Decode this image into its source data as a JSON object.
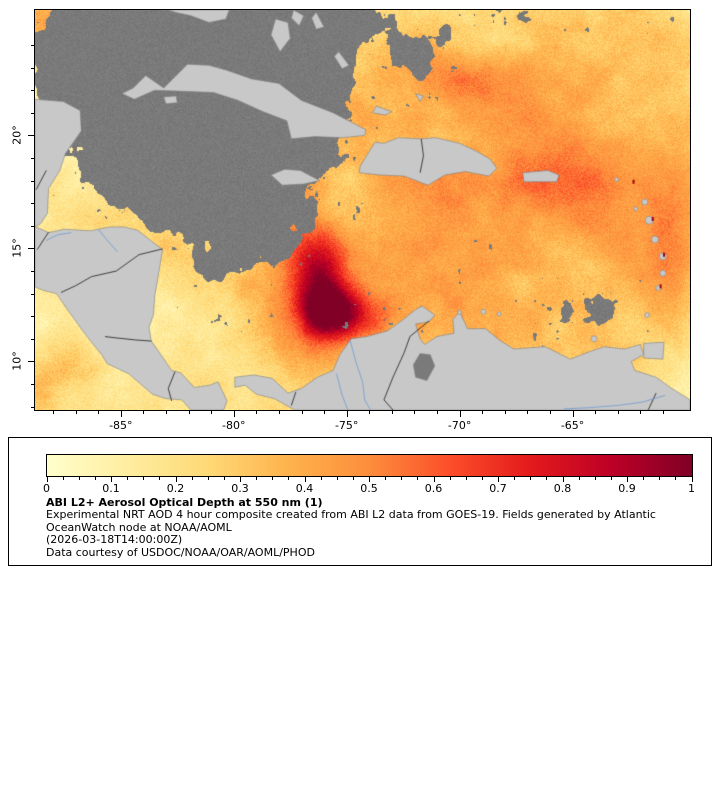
{
  "axes": {
    "lat_ticks": [
      {
        "label": "20°",
        "value": 20
      },
      {
        "label": "15°",
        "value": 15
      },
      {
        "label": "10°",
        "value": 10
      }
    ],
    "lon_ticks": [
      {
        "label": "-85°",
        "value": -85
      },
      {
        "label": "-80°",
        "value": -80
      },
      {
        "label": "-75°",
        "value": -75
      },
      {
        "label": "-70°",
        "value": -70
      },
      {
        "label": "-65°",
        "value": -65
      }
    ]
  },
  "colorbar": {
    "min": 0,
    "max": 1,
    "ticks": [
      "0",
      "0.1",
      "0.2",
      "0.3",
      "0.4",
      "0.5",
      "0.6",
      "0.7",
      "0.8",
      "0.9",
      "1"
    ],
    "colors": [
      "#ffffcc",
      "#ffeda0",
      "#fed976",
      "#feb24c",
      "#fd8d3c",
      "#fc4e2a",
      "#e31a1c",
      "#bd0026",
      "#800026"
    ]
  },
  "legend": {
    "title": "ABI L2+ Aerosol Optical Depth at 550 nm (1)",
    "desc_line1": "Experimental NRT AOD 4 hour composite created from ABI L2 data from GOES-19. Fields generated by Atlantic",
    "desc_line2": "OceanWatch node at NOAA/AOML",
    "timestamp": "(2026-03-18T14:00:00Z)",
    "courtesy": "Data courtesy of USDOC/NOAA/OAR/AOML/PHOD"
  },
  "map_colors": {
    "land": "#c8c8c8",
    "cloud": "#7a7a7a",
    "coast": "#808080",
    "country_border": "#1a1a1a",
    "river": "#6f9bd2",
    "frame": "#000000"
  }
}
